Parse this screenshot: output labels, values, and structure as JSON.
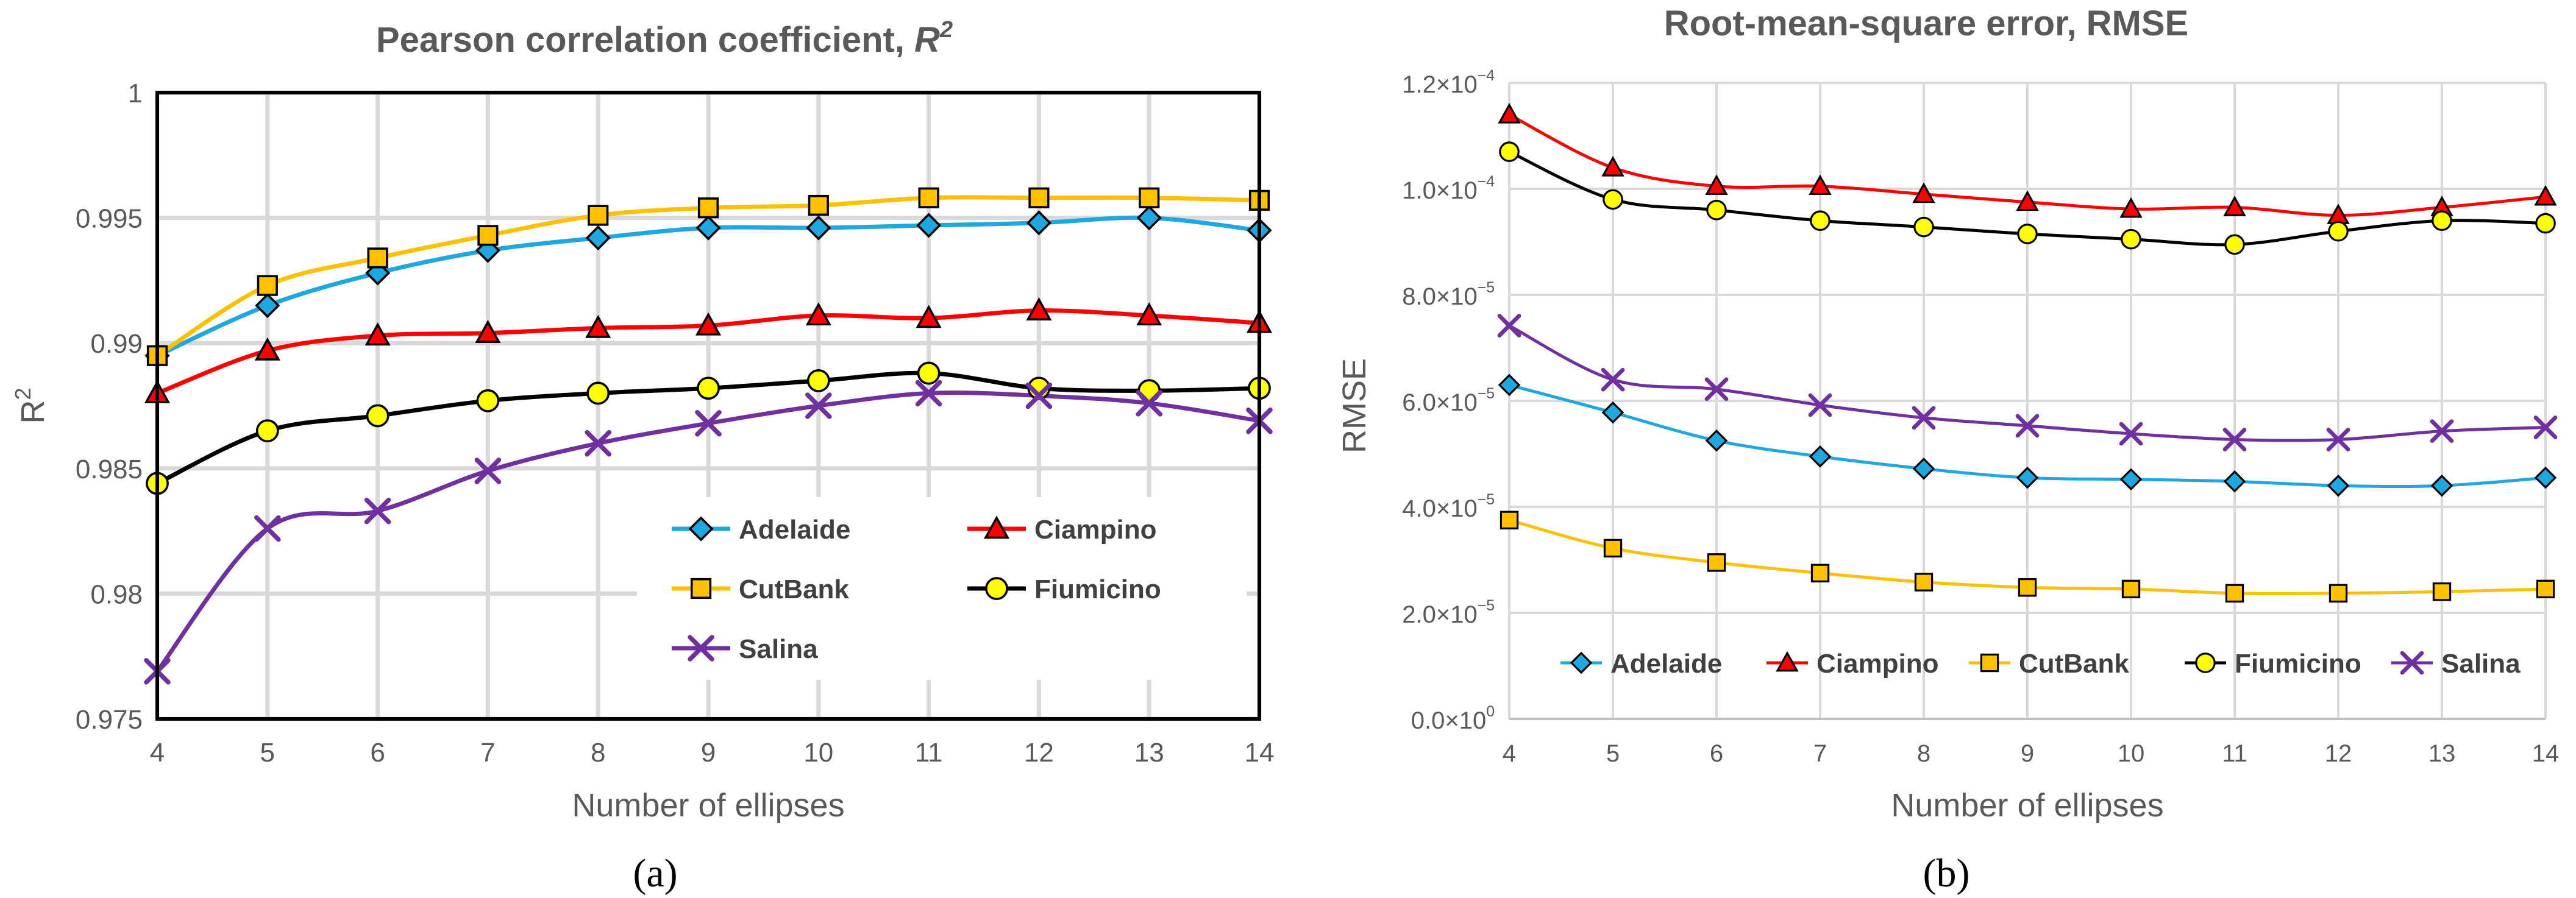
{
  "chart_data": [
    {
      "type": "line",
      "panel_label": "(a)",
      "title": "Pearson correlation coefficient, R²",
      "xlabel": "Number of ellipses",
      "ylabel": "R²",
      "x": [
        4,
        5,
        6,
        7,
        8,
        9,
        10,
        11,
        12,
        13,
        14
      ],
      "xlim": [
        4,
        14
      ],
      "ylim": [
        0.975,
        1
      ],
      "yticks": [
        0.975,
        0.98,
        0.985,
        0.99,
        0.995,
        1
      ],
      "ytick_labels": [
        "0.975",
        "0.98",
        "0.985",
        "0.99",
        "0.995",
        "1"
      ],
      "grid": true,
      "legend_position": "bottom-right",
      "series": [
        {
          "name": "Adelaide",
          "color": "#1fa7e0",
          "marker": "diamond",
          "values": [
            0.9895,
            0.9915,
            0.9928,
            0.9937,
            0.9942,
            0.9946,
            0.9946,
            0.9947,
            0.9948,
            0.995,
            0.9945
          ]
        },
        {
          "name": "Ciampino",
          "color": "#ff0000",
          "marker": "triangle",
          "values": [
            0.988,
            0.9897,
            0.9903,
            0.9904,
            0.9906,
            0.9907,
            0.9911,
            0.991,
            0.9913,
            0.9911,
            0.9908
          ]
        },
        {
          "name": "CutBank",
          "color": "#ffc000",
          "marker": "square",
          "values": [
            0.9895,
            0.9923,
            0.9934,
            0.9943,
            0.9951,
            0.9954,
            0.9955,
            0.9958,
            0.9958,
            0.9958,
            0.9957
          ]
        },
        {
          "name": "Fiumicino",
          "color": "#000000",
          "marker": "circle",
          "values": [
            0.9844,
            0.9865,
            0.9871,
            0.9877,
            0.988,
            0.9882,
            0.9885,
            0.9888,
            0.9882,
            0.9881,
            0.9882
          ]
        },
        {
          "name": "Salina",
          "color": "#7030a0",
          "marker": "x",
          "values": [
            0.9769,
            0.9826,
            0.9833,
            0.9849,
            0.986,
            0.9868,
            0.9875,
            0.988,
            0.9879,
            0.9876,
            0.9869
          ]
        }
      ]
    },
    {
      "type": "line",
      "panel_label": "(b)",
      "title": "Root-mean-square error, RMSE",
      "xlabel": "Number of ellipses",
      "ylabel": "RMSE",
      "x": [
        4,
        5,
        6,
        7,
        8,
        9,
        10,
        11,
        12,
        13,
        14
      ],
      "xlim": [
        4,
        14
      ],
      "ylim": [
        0,
        0.00012
      ],
      "yticks": [
        0,
        2e-05,
        4e-05,
        6e-05,
        8e-05,
        0.0001,
        0.00012
      ],
      "ytick_labels": [
        {
          "mant": "0.0×10",
          "exp": "0"
        },
        {
          "mant": "2.0×10",
          "exp": "−5"
        },
        {
          "mant": "4.0×10",
          "exp": "−5"
        },
        {
          "mant": "6.0×10",
          "exp": "−5"
        },
        {
          "mant": "8.0×10",
          "exp": "−5"
        },
        {
          "mant": "1.0×10",
          "exp": "−4"
        },
        {
          "mant": "1.2×10",
          "exp": "−4"
        }
      ],
      "grid": true,
      "legend_position": "bottom",
      "series": [
        {
          "name": "Adelaide",
          "color": "#1fa7e0",
          "marker": "diamond",
          "values": [
            6.3e-05,
            5.78e-05,
            5.25e-05,
            4.95e-05,
            4.72e-05,
            4.55e-05,
            4.52e-05,
            4.48e-05,
            4.4e-05,
            4.4e-05,
            4.55e-05
          ]
        },
        {
          "name": "Ciampino",
          "color": "#ff0000",
          "marker": "triangle",
          "values": [
            0.000114,
            0.000104,
            0.0001005,
            0.0001005,
            9.9e-05,
            9.75e-05,
            9.62e-05,
            9.65e-05,
            9.5e-05,
            9.65e-05,
            9.85e-05
          ]
        },
        {
          "name": "CutBank",
          "color": "#ffc000",
          "marker": "square",
          "values": [
            3.75e-05,
            3.22e-05,
            2.95e-05,
            2.75e-05,
            2.58e-05,
            2.48e-05,
            2.45e-05,
            2.37e-05,
            2.37e-05,
            2.4e-05,
            2.45e-05
          ]
        },
        {
          "name": "Fiumicino",
          "color": "#000000",
          "marker": "circle",
          "values": [
            0.000107,
            9.8e-05,
            9.6e-05,
            9.4e-05,
            9.28e-05,
            9.15e-05,
            9.05e-05,
            8.95e-05,
            9.2e-05,
            9.4e-05,
            9.35e-05
          ]
        },
        {
          "name": "Salina",
          "color": "#7030a0",
          "marker": "x",
          "values": [
            7.42e-05,
            6.4e-05,
            6.22e-05,
            5.92e-05,
            5.68e-05,
            5.53e-05,
            5.38e-05,
            5.27e-05,
            5.27e-05,
            5.43e-05,
            5.5e-05
          ]
        }
      ]
    }
  ]
}
